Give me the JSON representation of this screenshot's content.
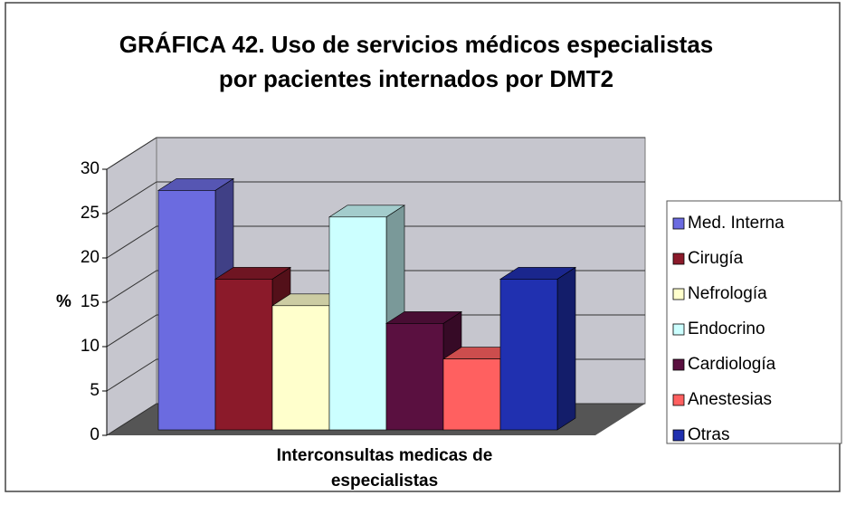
{
  "chart_data": {
    "type": "bar3d",
    "title": "GRÁFICA 42. Uso de servicios médicos especialistas por pacientes internados por DMT2",
    "y_label": "%",
    "categories": [
      "Interconsultas medicas de especialistas"
    ],
    "series": [
      {
        "name": "Med. Interna",
        "color": "#6b6be0",
        "values": [
          27
        ]
      },
      {
        "name": "Cirugía",
        "color": "#8b1a2a",
        "values": [
          17
        ]
      },
      {
        "name": "Nefrología",
        "color": "#ffffcc",
        "values": [
          14
        ]
      },
      {
        "name": "Endocrino",
        "color": "#ccffff",
        "values": [
          24
        ]
      },
      {
        "name": "Cardiología",
        "color": "#5a1040",
        "values": [
          12
        ]
      },
      {
        "name": "Anestesias",
        "color": "#ff6060",
        "values": [
          8
        ]
      },
      {
        "name": "Otras",
        "color": "#2030b0",
        "values": [
          17
        ]
      }
    ],
    "ylim": [
      0,
      30
    ],
    "yticks": [
      0,
      5,
      10,
      15,
      20,
      25,
      30
    ],
    "grid": true,
    "legend": "right"
  }
}
